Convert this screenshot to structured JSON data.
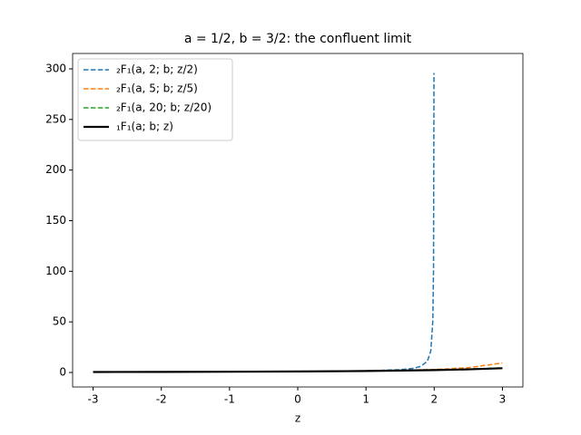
{
  "chart_data": {
    "type": "line",
    "title": "a = 1/2, b = 3/2: the confluent limit",
    "x_label": "z",
    "xlim": [
      -3.3,
      3.3
    ],
    "xticks": [
      -3,
      -2,
      -1,
      0,
      1,
      2,
      3
    ],
    "ylim": [
      -14.3,
      315.2
    ],
    "yticks": [
      0,
      50,
      100,
      150,
      200,
      250,
      300
    ],
    "legend": "upper left",
    "series": [
      {
        "name": "₂F₁(a, 2; b; z/2)",
        "color": "#1f77b4",
        "dashed": true,
        "x": [
          -3,
          -2,
          -1,
          0,
          0.5,
          1,
          1.5,
          1.7,
          1.8,
          1.9,
          1.95,
          1.98,
          1.99,
          1.9966
        ],
        "values": [
          0.562,
          0.643,
          0.769,
          1,
          1.216,
          1.623,
          2.76,
          4.2,
          5.96,
          11.12,
          21.28,
          51.5,
          101.7,
          296
        ]
      },
      {
        "name": "₂F₁(a, 5; b; z/5)",
        "color": "#ff7f0e",
        "dashed": true,
        "x": [
          -3,
          -2,
          -1,
          0,
          1,
          2,
          2.5,
          3
        ],
        "values": [
          0.53,
          0.6,
          0.75,
          1,
          1.51,
          2.92,
          4.77,
          9.37
        ]
      },
      {
        "name": "₂F₁(a, 20; b; z/20)",
        "color": "#2ca02c",
        "dashed": true,
        "x": [
          -3,
          -2,
          -1,
          0,
          1,
          2,
          2.5,
          3
        ],
        "values": [
          0.51,
          0.6,
          0.748,
          1,
          1.47,
          2.42,
          3.3,
          4.6
        ]
      },
      {
        "name": "₁F₁(a; b; z)",
        "color": "#000000",
        "dashed": false,
        "x": [
          -3,
          -2,
          -1,
          0,
          1,
          2,
          2.5,
          3
        ],
        "values": [
          0.504,
          0.598,
          0.747,
          1,
          1.463,
          2.364,
          3.12,
          4.22
        ]
      }
    ]
  }
}
